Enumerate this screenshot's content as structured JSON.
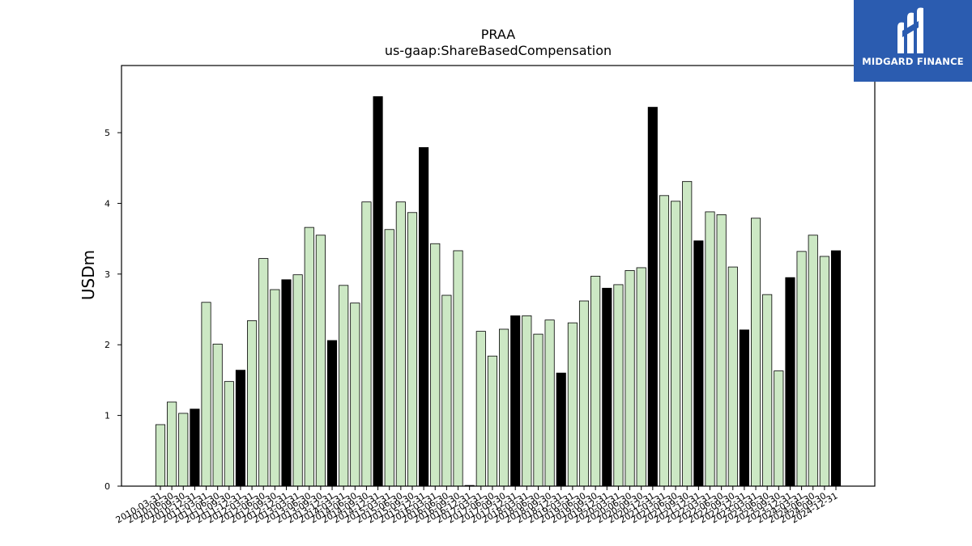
{
  "brand": {
    "name": "MIDGARD FINANCE",
    "bg_color": "#2b5cb0",
    "icon": "midgard-logo-icon"
  },
  "colors": {
    "bar_light": "#cce8c4",
    "bar_dark": "#000000",
    "bar_edge": "#000000"
  },
  "chart_data": {
    "type": "bar",
    "title": "PRAA",
    "subtitle": "us-gaap:ShareBasedCompensation",
    "xlabel": "",
    "ylabel": "USDm",
    "ylim": [
      0,
      5.95
    ],
    "yticks": [
      0,
      1,
      2,
      3,
      4,
      5
    ],
    "grid": false,
    "legend": "none",
    "highlight_rule": "fourth-quarter (12-31) values drawn in black",
    "categories": [
      "2010-03-31",
      "2010-06-30",
      "2010-09-30",
      "2010-12-31",
      "2011-03-31",
      "2011-06-30",
      "2011-09-30",
      "2011-12-31",
      "2012-03-31",
      "2012-06-30",
      "2012-09-30",
      "2012-12-31",
      "2013-03-31",
      "2013-06-30",
      "2013-09-30",
      "2013-12-31",
      "2014-03-31",
      "2014-06-30",
      "2014-09-30",
      "2014-12-31",
      "2015-03-31",
      "2015-06-30",
      "2015-09-30",
      "2015-12-31",
      "2016-03-31",
      "2016-06-30",
      "2016-09-30",
      "2016-12-31",
      "2017-03-31",
      "2017-06-30",
      "2017-09-30",
      "2017-12-31",
      "2018-03-31",
      "2018-06-30",
      "2018-09-30",
      "2018-12-31",
      "2019-03-31",
      "2019-06-30",
      "2019-09-30",
      "2019-12-31",
      "2020-03-31",
      "2020-06-30",
      "2020-09-30",
      "2020-12-31",
      "2021-03-31",
      "2021-06-30",
      "2021-09-30",
      "2021-12-31",
      "2022-03-31",
      "2022-06-30",
      "2022-09-30",
      "2022-12-31",
      "2023-03-31",
      "2023-06-30",
      "2023-09-30",
      "2023-12-31",
      "2024-03-31",
      "2024-06-30",
      "2024-09-30",
      "2024-12-31"
    ],
    "values": [
      0.87,
      1.19,
      1.03,
      1.09,
      2.6,
      2.01,
      1.48,
      1.64,
      2.34,
      3.22,
      2.78,
      2.92,
      2.99,
      3.66,
      3.55,
      2.06,
      2.84,
      2.59,
      4.02,
      5.51,
      3.63,
      4.02,
      3.87,
      4.79,
      3.43,
      2.7,
      3.33,
      0.01,
      2.19,
      1.84,
      2.22,
      2.41,
      2.41,
      2.15,
      2.35,
      1.6,
      2.31,
      2.62,
      2.97,
      2.8,
      2.85,
      3.05,
      3.09,
      5.36,
      4.11,
      4.03,
      4.31,
      3.47,
      3.88,
      3.84,
      3.1,
      2.21,
      3.79,
      2.71,
      1.63,
      2.95,
      3.32,
      3.55,
      3.25,
      3.33
    ]
  }
}
